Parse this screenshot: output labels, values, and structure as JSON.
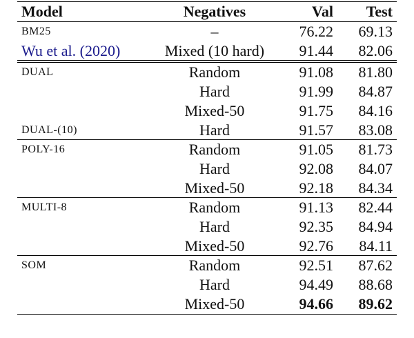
{
  "table": {
    "header": [
      "Model",
      "Negatives",
      "Val",
      "Test"
    ],
    "sections": [
      {
        "rows": [
          {
            "model": "BM25",
            "negatives": "–",
            "val": "76.22",
            "test": "69.13"
          },
          {
            "model": "Wu et al. (2020)",
            "negatives": "Mixed (10 hard)",
            "val": "91.44",
            "test": "82.06"
          }
        ]
      },
      {
        "rows": [
          {
            "model": "DUAL",
            "negatives": "Random",
            "val": "91.08",
            "test": "81.80"
          },
          {
            "negatives": "Hard",
            "val": "91.99",
            "test": "84.87"
          },
          {
            "negatives": "Mixed-50",
            "val": "91.75",
            "test": "84.16"
          },
          {
            "model": "DUAL-(10)",
            "negatives": "Hard",
            "val": "91.57",
            "test": "83.08"
          }
        ]
      },
      {
        "rows": [
          {
            "model": "POLY-16",
            "negatives": "Random",
            "val": "91.05",
            "test": "81.73"
          },
          {
            "negatives": "Hard",
            "val": "92.08",
            "test": "84.07"
          },
          {
            "negatives": "Mixed-50",
            "val": "92.18",
            "test": "84.34"
          }
        ]
      },
      {
        "rows": [
          {
            "model": "MULTI-8",
            "negatives": "Random",
            "val": "91.13",
            "test": "82.44"
          },
          {
            "negatives": "Hard",
            "val": "92.35",
            "test": "84.94"
          },
          {
            "negatives": "Mixed-50",
            "val": "92.76",
            "test": "84.11"
          }
        ]
      },
      {
        "rows": [
          {
            "model": "SOM",
            "negatives": "Random",
            "val": "92.51",
            "test": "87.62"
          },
          {
            "negatives": "Hard",
            "val": "94.49",
            "test": "88.68"
          },
          {
            "negatives": "Mixed-50",
            "val": "94.66",
            "test": "89.62"
          }
        ]
      }
    ]
  }
}
